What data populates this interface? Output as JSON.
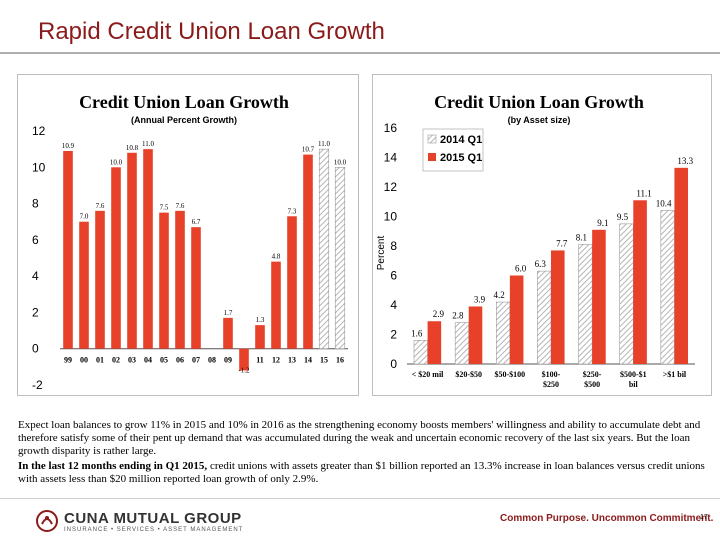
{
  "slide": {
    "title": "Rapid Credit Union Loan Growth",
    "paragraph1": "Expect loan balances to grow 11% in 2015 and 10% in 2016 as the strengthening economy boosts members' willingness and ability to accumulate debt and therefore satisfy some of their pent up demand that was accumulated during the weak and uncertain economic recovery of the last six years. But the loan growth disparity is rather large.",
    "paragraph2_bold": "In the last 12 months ending in Q1 2015,",
    "paragraph2_rest": " credit unions with assets greater than $1 billion reported an 13.3% increase in loan balances versus credit unions with assets less than $20 million reported loan growth of only 2.9%.",
    "logo_main": "CUNA MUTUAL GROUP",
    "logo_sub": "INSURANCE • SERVICES • ASSET MANAGEMENT",
    "tagline": "Common Purpose. Uncommon Commitment.",
    "page_number": "17"
  },
  "colors": {
    "title": "#8b1a1a",
    "bar_red": "#e8412a",
    "hatch": "#b5b5b5",
    "accent": "#8b1a1a"
  },
  "chart_data": [
    {
      "type": "bar",
      "title": "Credit Union Loan Growth",
      "subtitle": "(Annual Percent Growth)",
      "xlabel": "",
      "ylabel": "",
      "ylim": [
        -2,
        12
      ],
      "yticks": [
        -2,
        0,
        2,
        4,
        6,
        8,
        10,
        12
      ],
      "grid": false,
      "categories": [
        "99",
        "00",
        "01",
        "02",
        "03",
        "04",
        "05",
        "06",
        "07",
        "08",
        "09",
        "10",
        "11",
        "12",
        "13",
        "14",
        "15",
        "16"
      ],
      "values": [
        10.9,
        7.0,
        7.6,
        10.0,
        10.8,
        11.0,
        7.5,
        7.6,
        6.7,
        null,
        1.7,
        -1.2,
        1.3,
        4.8,
        7.3,
        10.7,
        11.0,
        10.0
      ],
      "labels": [
        "10.9",
        "7.0",
        "7.6",
        "10.0",
        "10.8",
        "11.0",
        "7.5",
        "7.6",
        "6.7",
        "",
        "1.7",
        "-1.2",
        "1.3",
        "4.8",
        "7.3",
        "10.7",
        "11.0",
        "10.0"
      ],
      "forecast_from_index": 16
    },
    {
      "type": "bar",
      "title": "Credit Union Loan Growth",
      "subtitle": "(by Asset size)",
      "xlabel": "",
      "ylabel": "Percent",
      "ylim": [
        0,
        16
      ],
      "yticks": [
        0,
        2,
        4,
        6,
        8,
        10,
        12,
        14,
        16
      ],
      "grid": false,
      "legend": "top-left",
      "categories": [
        "< $20 mil",
        "$20-$50",
        "$50-$100",
        "$100-\n$250",
        "$250-\n$500",
        "$500-$1\nbil",
        ">$1 bil"
      ],
      "series": [
        {
          "name": "2014 Q1",
          "values": [
            1.6,
            2.8,
            4.2,
            6.3,
            8.1,
            9.5,
            10.4
          ]
        },
        {
          "name": "2015 Q1",
          "values": [
            2.9,
            3.9,
            6.0,
            7.7,
            9.1,
            11.1,
            13.3
          ]
        }
      ],
      "labels": [
        [
          "1.6",
          "2.8",
          "4.2",
          "6.3",
          "8.1",
          "9.5",
          "10.4"
        ],
        [
          "2.9",
          "3.9",
          "6.0",
          "7.7",
          "9.1",
          "11.1",
          "13.3"
        ]
      ]
    }
  ]
}
